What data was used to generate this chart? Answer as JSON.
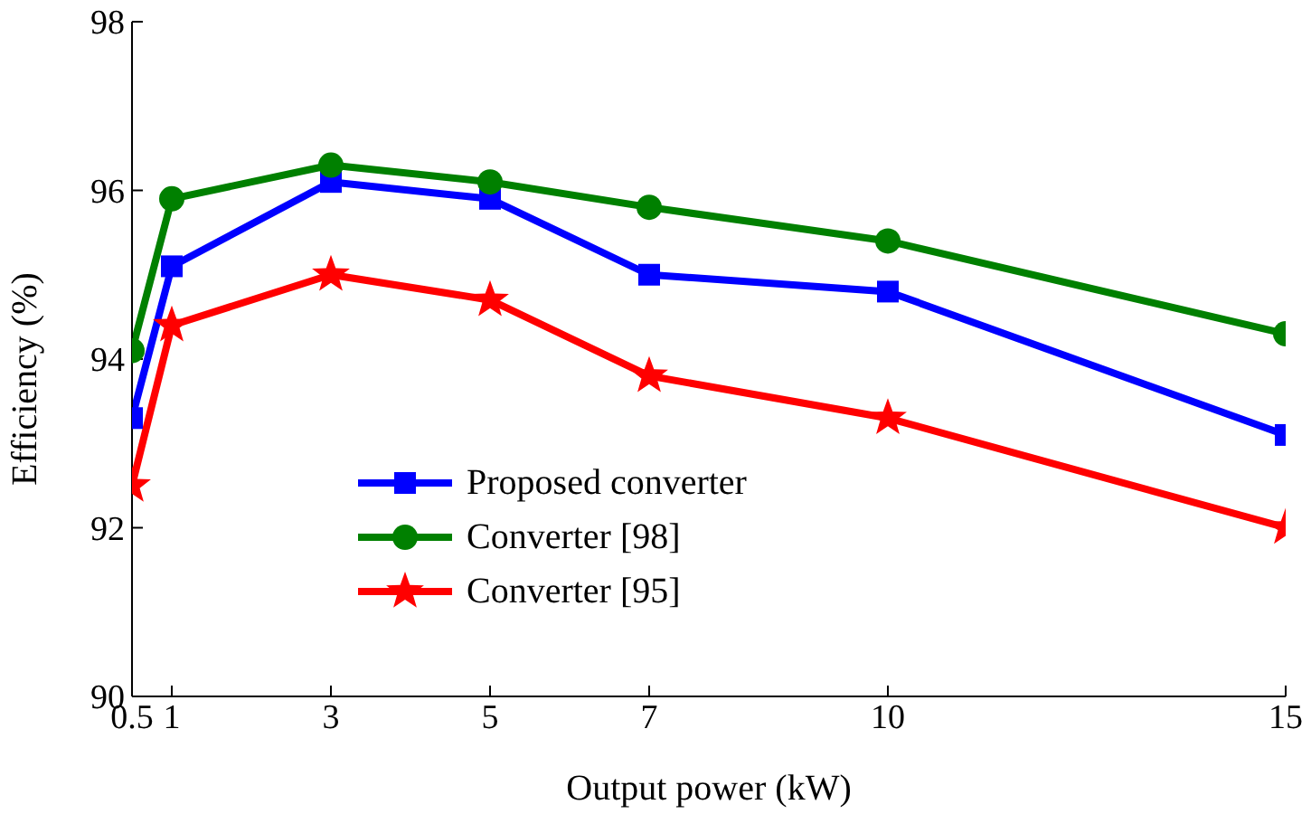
{
  "chart_data": {
    "type": "line",
    "xlabel": "Output power (kW)",
    "ylabel": "Efficiency (%)",
    "x": [
      0.5,
      1,
      3,
      5,
      7,
      10,
      15
    ],
    "xlim": [
      0.5,
      15
    ],
    "xticks": [
      0.5,
      1,
      3,
      5,
      7,
      10,
      15
    ],
    "ylim": [
      90,
      98
    ],
    "yticks": [
      90,
      92,
      94,
      96,
      98
    ],
    "grid": false,
    "legend": "bottom left",
    "line_style": "solid",
    "series": [
      {
        "name": "Proposed converter",
        "color": "#0000ff",
        "marker": "square",
        "values": [
          93.3,
          95.1,
          96.1,
          95.9,
          95.0,
          94.8,
          93.1
        ]
      },
      {
        "name": "Converter [98]",
        "color": "#008000",
        "marker": "circle",
        "values": [
          94.1,
          95.9,
          96.3,
          96.1,
          95.8,
          95.4,
          94.3
        ]
      },
      {
        "name": "Converter [95]",
        "color": "#ff0000",
        "marker": "star",
        "values": [
          92.5,
          94.4,
          95.0,
          94.7,
          93.8,
          93.3,
          92.0
        ]
      }
    ]
  }
}
